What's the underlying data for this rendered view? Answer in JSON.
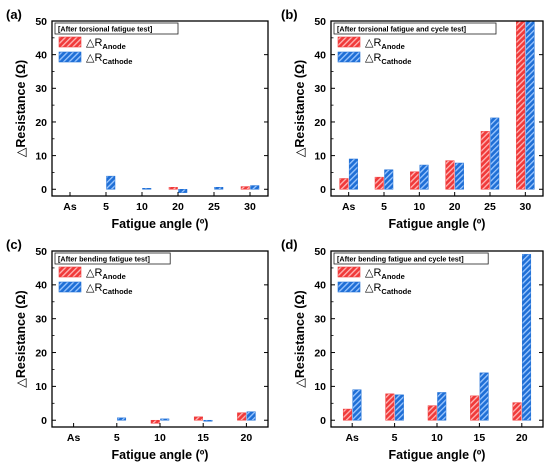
{
  "colors": {
    "anode": "#f03a3a",
    "anode_stripe": "#ffb8b8",
    "cathode": "#1f6fd6",
    "cathode_stripe": "#9ec8ff",
    "axis": "#000000"
  },
  "legend": {
    "delta": "△",
    "anode_main": "R",
    "anode_sub": "Anode",
    "cathode_main": "R",
    "cathode_sub": "Cathode"
  },
  "chart_data": [
    {
      "panel": "(a)",
      "type": "bar",
      "condition": "[After torsional fatigue test]",
      "xlabel": "Fatigue angle (º)",
      "ylabel": "△Resistance (Ω)",
      "categories": [
        "As",
        "5",
        "10",
        "20",
        "25",
        "30"
      ],
      "ylim": [
        -2,
        50
      ],
      "yticks": [
        0,
        10,
        20,
        30,
        40,
        50
      ],
      "series": [
        {
          "name": "△R_Anode",
          "values": [
            0,
            0,
            0,
            0.6,
            0,
            0.8
          ]
        },
        {
          "name": "△R_Cathode",
          "values": [
            0,
            3.9,
            0.3,
            -1.0,
            0.6,
            1.1
          ]
        }
      ],
      "legend_position": "top-left",
      "grid": false
    },
    {
      "panel": "(b)",
      "type": "bar",
      "condition": "[After torsional fatigue and cycle test]",
      "xlabel": "Fatigue angle (º)",
      "ylabel": "△Resistance (Ω)",
      "categories": [
        "As",
        "5",
        "10",
        "20",
        "25",
        "30"
      ],
      "ylim": [
        -2,
        50
      ],
      "yticks": [
        0,
        10,
        20,
        30,
        40,
        50
      ],
      "series": [
        {
          "name": "△R_Anode",
          "values": [
            3.2,
            3.6,
            5.2,
            8.5,
            17.2,
            50
          ]
        },
        {
          "name": "△R_Cathode",
          "values": [
            9.0,
            5.8,
            7.2,
            7.8,
            21.2,
            50
          ]
        }
      ],
      "legend_position": "top-left",
      "grid": false
    },
    {
      "panel": "(c)",
      "type": "bar",
      "condition": "[After bending fatigue test]",
      "xlabel": "Fatigue angle (º)",
      "ylabel": "△Resistance (Ω)",
      "categories": [
        "As",
        "5",
        "10",
        "15",
        "20"
      ],
      "ylim": [
        -2,
        50
      ],
      "yticks": [
        0,
        10,
        20,
        30,
        40,
        50
      ],
      "series": [
        {
          "name": "△R_Anode",
          "values": [
            0,
            0,
            -0.9,
            1.0,
            2.2
          ]
        },
        {
          "name": "△R_Cathode",
          "values": [
            0,
            0.7,
            0.4,
            -0.3,
            2.5
          ]
        }
      ],
      "legend_position": "top-left",
      "grid": false
    },
    {
      "panel": "(d)",
      "type": "bar",
      "condition": "[After bending fatigue and cycle test]",
      "xlabel": "Fatigue angle (º)",
      "ylabel": "△Resistance (Ω)",
      "categories": [
        "As",
        "5",
        "10",
        "15",
        "20"
      ],
      "ylim": [
        -2,
        50
      ],
      "yticks": [
        0,
        10,
        20,
        30,
        40,
        50
      ],
      "series": [
        {
          "name": "△R_Anode",
          "values": [
            3.3,
            7.8,
            4.3,
            7.2,
            5.2
          ]
        },
        {
          "name": "△R_Cathode",
          "values": [
            9.0,
            7.5,
            8.2,
            14.0,
            49.0
          ]
        }
      ],
      "legend_position": "top-left",
      "grid": false
    }
  ]
}
